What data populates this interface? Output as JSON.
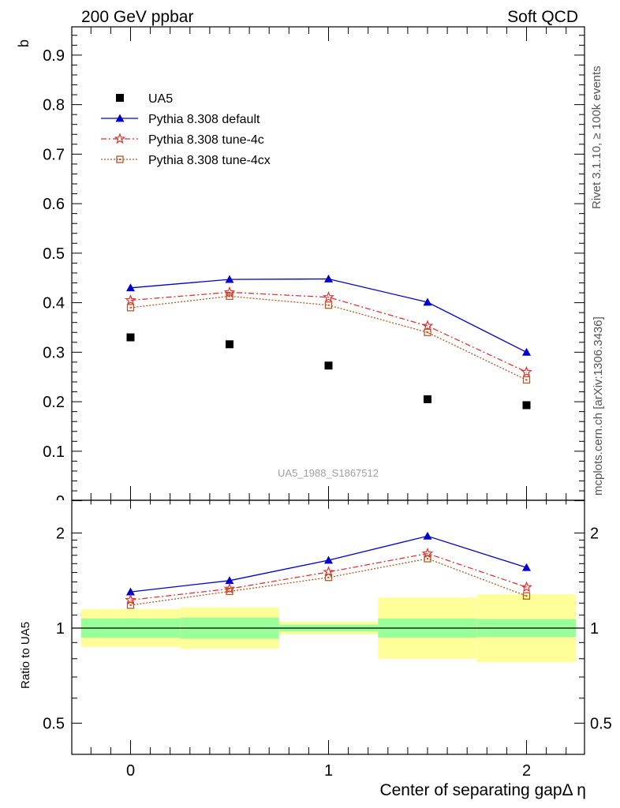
{
  "header": {
    "left": "200 GeV ppbar",
    "right": "Soft QCD"
  },
  "side_text": {
    "top": "Rivet 3.1.10, ≥ 100k events",
    "bottom": "mcplots.cern.ch [arXiv:1306.3436]"
  },
  "analysis_label": "UA5_1988_S1867512",
  "colors": {
    "data": "#000000",
    "default": "#0000cc",
    "tune4c": "#dd3333",
    "tune4cx": "#bb5522",
    "band_inner": "#99ff99",
    "band_outer": "#ffff99"
  },
  "chart_data": [
    {
      "type": "scatter",
      "ylabel": "b",
      "xlim": [
        -0.3,
        2.3
      ],
      "ylim": [
        0,
        0.95
      ],
      "yticks": [
        0.1,
        0.2,
        0.3,
        0.4,
        0.5,
        0.6,
        0.7,
        0.8,
        0.9
      ],
      "ytick_labels": [
        "0.1",
        "0.2",
        "0.3",
        "0.4",
        "0.5",
        "0.6",
        "0.7",
        "0.8",
        "0.9"
      ],
      "y_zero_label": "0",
      "grid": false,
      "legend_position": "top-left",
      "series": [
        {
          "name": "UA5",
          "x": [
            0,
            0.5,
            1,
            1.5,
            2
          ],
          "y": [
            0.33,
            0.316,
            0.273,
            0.205,
            0.193
          ]
        },
        {
          "name": "Pythia 8.308 default",
          "x": [
            0,
            0.5,
            1,
            1.5,
            2
          ],
          "y": [
            0.43,
            0.447,
            0.448,
            0.401,
            0.3
          ]
        },
        {
          "name": "Pythia 8.308 tune-4c",
          "x": [
            0,
            0.5,
            1,
            1.5,
            2
          ],
          "y": [
            0.405,
            0.421,
            0.411,
            0.353,
            0.26
          ]
        },
        {
          "name": "Pythia 8.308 tune-4cx",
          "x": [
            0,
            0.5,
            1,
            1.5,
            2
          ],
          "y": [
            0.39,
            0.413,
            0.395,
            0.34,
            0.244
          ]
        }
      ]
    },
    {
      "type": "line",
      "ylabel": "Ratio to UA5",
      "xlabel": "Center of separating gapΔ η",
      "xlim": [
        -0.3,
        2.3
      ],
      "ylim": [
        0.4,
        2.25
      ],
      "xticks": [
        0,
        1,
        2
      ],
      "xtick_labels": [
        "0",
        "1",
        "2"
      ],
      "yticks": [
        0.5,
        1,
        2
      ],
      "ytick_labels": [
        "0.5",
        "1",
        "2"
      ],
      "bins": [
        [
          -0.25,
          0.25
        ],
        [
          0.25,
          0.75
        ],
        [
          0.75,
          1.25
        ],
        [
          1.25,
          1.75
        ],
        [
          1.75,
          2.25
        ]
      ],
      "band_inner": [
        [
          0.932,
          1.073
        ],
        [
          0.926,
          1.079
        ],
        [
          0.975,
          1.026
        ],
        [
          0.933,
          1.072
        ],
        [
          0.937,
          1.068
        ]
      ],
      "band_outer": [
        [
          0.872,
          1.147
        ],
        [
          0.86,
          1.163
        ],
        [
          0.955,
          1.047
        ],
        [
          0.8,
          1.25
        ],
        [
          0.78,
          1.28
        ]
      ],
      "series": [
        {
          "name": "Pythia 8.308 default",
          "x": [
            0,
            0.5,
            1,
            1.5,
            2
          ],
          "y": [
            1.302,
            1.414,
            1.64,
            1.956,
            1.555
          ]
        },
        {
          "name": "Pythia 8.308 tune-4c",
          "x": [
            0,
            0.5,
            1,
            1.5,
            2
          ],
          "y": [
            1.227,
            1.332,
            1.505,
            1.722,
            1.347
          ]
        },
        {
          "name": "Pythia 8.308 tune-4cx",
          "x": [
            0,
            0.5,
            1,
            1.5,
            2
          ],
          "y": [
            1.182,
            1.307,
            1.447,
            1.659,
            1.264
          ]
        }
      ]
    }
  ]
}
